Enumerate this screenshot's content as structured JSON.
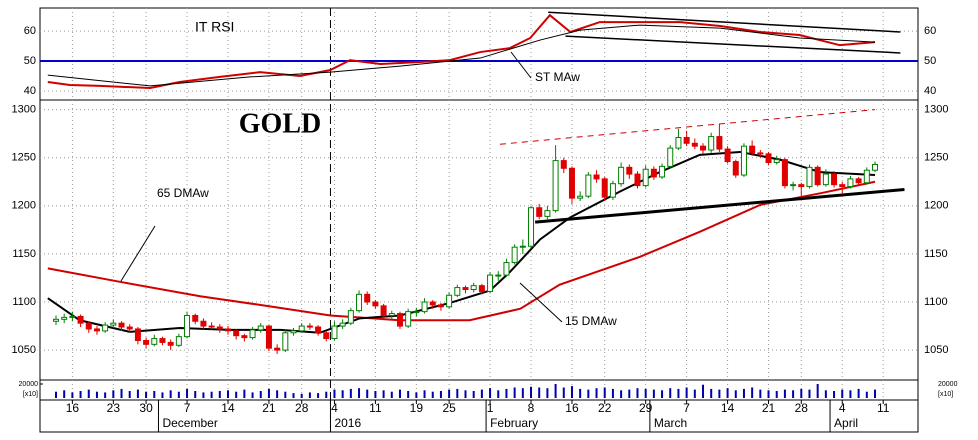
{
  "chart_data": {
    "type": "candlestick",
    "title": "GOLD",
    "categories": [
      null,
      null,
      "16",
      null,
      null,
      null,
      null,
      "23",
      null,
      null,
      null,
      "30",
      null,
      null,
      null,
      null,
      "7",
      null,
      null,
      null,
      null,
      "14",
      null,
      null,
      null,
      null,
      "21",
      null,
      null,
      null,
      "28",
      null,
      null,
      null,
      "4",
      null,
      null,
      null,
      null,
      "11",
      null,
      null,
      null,
      null,
      "19",
      null,
      null,
      null,
      "25",
      null,
      null,
      null,
      null,
      "1",
      null,
      null,
      null,
      null,
      "8",
      null,
      null,
      null,
      null,
      "16",
      null,
      null,
      null,
      "22",
      null,
      null,
      null,
      null,
      "29",
      null,
      null,
      null,
      null,
      "7",
      null,
      null,
      null,
      null,
      "14",
      null,
      null,
      null,
      null,
      "21",
      null,
      null,
      null,
      "28",
      null,
      null,
      null,
      null,
      "4",
      null,
      null,
      null,
      null,
      "11"
    ],
    "months": [
      {
        "label": "December",
        "start": 13
      },
      {
        "label": "2016",
        "start": 34,
        "dashed": true
      },
      {
        "label": "February",
        "start": 53
      },
      {
        "label": "March",
        "start": 73
      },
      {
        "label": "April",
        "start": 95
      }
    ],
    "ohlc": [
      [
        1080,
        1086,
        1076,
        1082
      ],
      [
        1082,
        1088,
        1078,
        1084
      ],
      [
        1084,
        1090,
        1080,
        1085
      ],
      [
        1085,
        1087,
        1074,
        1078
      ],
      [
        1078,
        1080,
        1068,
        1072
      ],
      [
        1072,
        1075,
        1066,
        1070
      ],
      [
        1070,
        1079,
        1068,
        1076
      ],
      [
        1076,
        1082,
        1073,
        1078
      ],
      [
        1078,
        1080,
        1070,
        1074
      ],
      [
        1074,
        1077,
        1068,
        1072
      ],
      [
        1072,
        1074,
        1056,
        1060
      ],
      [
        1060,
        1063,
        1052,
        1056
      ],
      [
        1056,
        1066,
        1054,
        1062
      ],
      [
        1062,
        1064,
        1055,
        1058
      ],
      [
        1058,
        1061,
        1050,
        1055
      ],
      [
        1055,
        1067,
        1053,
        1064
      ],
      [
        1064,
        1090,
        1062,
        1086
      ],
      [
        1086,
        1088,
        1077,
        1080
      ],
      [
        1080,
        1083,
        1072,
        1075
      ],
      [
        1075,
        1079,
        1071,
        1074
      ],
      [
        1074,
        1077,
        1068,
        1072
      ],
      [
        1072,
        1075,
        1066,
        1070
      ],
      [
        1070,
        1072,
        1061,
        1065
      ],
      [
        1065,
        1067,
        1059,
        1063
      ],
      [
        1063,
        1074,
        1061,
        1071
      ],
      [
        1071,
        1078,
        1068,
        1075
      ],
      [
        1075,
        1076,
        1049,
        1052
      ],
      [
        1052,
        1056,
        1046,
        1050
      ],
      [
        1050,
        1071,
        1048,
        1068
      ],
      [
        1068,
        1073,
        1065,
        1070
      ],
      [
        1070,
        1078,
        1068,
        1075
      ],
      [
        1075,
        1078,
        1071,
        1074
      ],
      [
        1074,
        1076,
        1065,
        1068
      ],
      [
        1068,
        1070,
        1059,
        1062
      ],
      [
        1062,
        1080,
        1060,
        1075
      ],
      [
        1075,
        1082,
        1072,
        1078
      ],
      [
        1078,
        1094,
        1076,
        1091
      ],
      [
        1091,
        1112,
        1089,
        1108
      ],
      [
        1108,
        1111,
        1097,
        1100
      ],
      [
        1100,
        1102,
        1093,
        1096
      ],
      [
        1096,
        1098,
        1083,
        1086
      ],
      [
        1086,
        1091,
        1082,
        1088
      ],
      [
        1088,
        1090,
        1072,
        1075
      ],
      [
        1075,
        1093,
        1073,
        1090
      ],
      [
        1090,
        1094,
        1085,
        1090
      ],
      [
        1090,
        1104,
        1088,
        1100
      ],
      [
        1100,
        1102,
        1093,
        1097
      ],
      [
        1097,
        1099,
        1091,
        1095
      ],
      [
        1095,
        1110,
        1093,
        1107
      ],
      [
        1107,
        1118,
        1105,
        1115
      ],
      [
        1115,
        1117,
        1109,
        1113
      ],
      [
        1113,
        1120,
        1110,
        1117
      ],
      [
        1117,
        1119,
        1108,
        1111
      ],
      [
        1111,
        1131,
        1109,
        1128
      ],
      [
        1128,
        1132,
        1122,
        1128
      ],
      [
        1128,
        1145,
        1126,
        1141
      ],
      [
        1141,
        1160,
        1139,
        1157
      ],
      [
        1157,
        1165,
        1150,
        1158
      ],
      [
        1158,
        1200,
        1156,
        1198
      ],
      [
        1198,
        1202,
        1186,
        1189
      ],
      [
        1189,
        1200,
        1185,
        1195
      ],
      [
        1195,
        1263,
        1193,
        1247
      ],
      [
        1247,
        1250,
        1234,
        1239
      ],
      [
        1239,
        1241,
        1202,
        1208
      ],
      [
        1208,
        1215,
        1205,
        1210
      ],
      [
        1210,
        1235,
        1208,
        1232
      ],
      [
        1232,
        1237,
        1224,
        1228
      ],
      [
        1228,
        1230,
        1205,
        1209
      ],
      [
        1209,
        1226,
        1206,
        1223
      ],
      [
        1223,
        1245,
        1220,
        1240
      ],
      [
        1240,
        1243,
        1228,
        1233
      ],
      [
        1233,
        1236,
        1218,
        1221
      ],
      [
        1221,
        1242,
        1219,
        1238
      ],
      [
        1238,
        1241,
        1227,
        1230
      ],
      [
        1230,
        1244,
        1228,
        1241
      ],
      [
        1241,
        1263,
        1239,
        1260
      ],
      [
        1260,
        1280,
        1258,
        1271
      ],
      [
        1271,
        1278,
        1262,
        1265
      ],
      [
        1265,
        1270,
        1259,
        1262
      ],
      [
        1262,
        1265,
        1254,
        1258
      ],
      [
        1258,
        1276,
        1255,
        1272
      ],
      [
        1272,
        1285,
        1256,
        1259
      ],
      [
        1259,
        1262,
        1244,
        1246
      ],
      [
        1246,
        1248,
        1229,
        1232
      ],
      [
        1232,
        1265,
        1230,
        1262
      ],
      [
        1262,
        1268,
        1252,
        1255
      ],
      [
        1255,
        1258,
        1250,
        1254
      ],
      [
        1254,
        1256,
        1242,
        1245
      ],
      [
        1245,
        1252,
        1243,
        1248
      ],
      [
        1248,
        1250,
        1218,
        1221
      ],
      [
        1221,
        1225,
        1216,
        1222
      ],
      [
        1222,
        1224,
        1210,
        1220
      ],
      [
        1220,
        1243,
        1218,
        1240
      ],
      [
        1240,
        1242,
        1220,
        1222
      ],
      [
        1222,
        1238,
        1220,
        1233
      ],
      [
        1233,
        1236,
        1219,
        1222
      ],
      [
        1222,
        1225,
        1212,
        1220
      ],
      [
        1220,
        1231,
        1218,
        1228
      ],
      [
        1228,
        1230,
        1221,
        1224
      ],
      [
        1224,
        1240,
        1222,
        1237
      ],
      [
        1237,
        1246,
        1235,
        1243
      ],
      null
    ],
    "up_color": "#008000",
    "down_color": "#e00000",
    "ylim": [
      1021,
      1310
    ],
    "yticks": [
      1050,
      1100,
      1150,
      1200,
      1250,
      1300
    ],
    "grid": true,
    "lines": [
      {
        "name": "65 DMAw",
        "color": "#d00000",
        "x": [
          -1,
          7.8,
          17.6,
          24.9,
          33.5,
          42,
          50.5,
          56.7,
          61.5,
          71.3,
          78.6,
          86,
          93.3,
          100
        ],
        "values": [
          1135,
          1121,
          1106,
          1097,
          1086,
          1081,
          1081,
          1093,
          1118,
          1147,
          1173,
          1201,
          1213,
          1225
        ]
      },
      {
        "name": "15 DMAw",
        "color": "#000000",
        "x": [
          -1,
          2.9,
          9,
          15.1,
          21.2,
          27.4,
          32.2,
          37.1,
          42,
          48.1,
          53,
          55.4,
          59.1,
          62.8,
          68.9,
          73.7,
          78.6,
          83.5,
          88.4,
          93.3,
          100
        ],
        "values": [
          1104,
          1081,
          1069,
          1073,
          1071,
          1071,
          1068,
          1083,
          1086,
          1099,
          1112,
          1131,
          1165,
          1188,
          1215,
          1235,
          1253,
          1256,
          1248,
          1235,
          1232
        ]
      }
    ],
    "trendlines": [
      {
        "color": "#000000",
        "dashed": false,
        "x": [
          58.5,
          103.6
        ],
        "values": [
          1183,
          1217
        ]
      },
      {
        "color": "#d00000",
        "dashed": true,
        "x": [
          54.2,
          100
        ],
        "values": [
          1264,
          1300
        ]
      }
    ],
    "volume": {
      "color": "#0000aa",
      "ylim": [
        0,
        20000
      ],
      "yticks": [
        20000
      ],
      "unit_label": "[x10]",
      "values": [
        9000,
        11000,
        8000,
        10000,
        12000,
        9000,
        8000,
        11000,
        13000,
        10000,
        12000,
        9000,
        10000,
        8000,
        11000,
        9000,
        13000,
        10000,
        8000,
        9000,
        10000,
        11000,
        9000,
        12000,
        8000,
        10000,
        13000,
        11000,
        9000,
        7000,
        6000,
        8000,
        7000,
        9000,
        12000,
        11000,
        13000,
        14000,
        12000,
        10000,
        11000,
        9000,
        12000,
        10000,
        8000,
        11000,
        9000,
        10000,
        12000,
        13000,
        11000,
        10000,
        12000,
        14000,
        11000,
        13000,
        15000,
        14000,
        16000,
        15000,
        14000,
        20000,
        15000,
        17000,
        13000,
        12000,
        14000,
        15000,
        13000,
        11000,
        12000,
        14000,
        13000,
        12000,
        11000,
        14000,
        13000,
        15000,
        12000,
        19000,
        13000,
        12000,
        14000,
        11000,
        13000,
        15000,
        12000,
        11000,
        10000,
        12000,
        11000,
        13000,
        12000,
        20000,
        11000,
        10000,
        12000,
        11000,
        13000,
        9000,
        12000,
        null
      ]
    },
    "rsi": {
      "title": "IT RSI",
      "ylim": [
        37,
        67.7
      ],
      "yticks": [
        40,
        50,
        60
      ],
      "reference": 50,
      "reference_color": "#0000cc",
      "series": [
        {
          "color": "#d00000",
          "x": [
            -1,
            1.7,
            5.4,
            11.5,
            15.1,
            20,
            24.9,
            29.8,
            33.5,
            35.9,
            39.6,
            44.4,
            48.1,
            51.8,
            55.4,
            57.9,
            60.3,
            62.8,
            66.4,
            71.3,
            76.2,
            81.1,
            86,
            90.8,
            95.7,
            100
          ],
          "values": [
            43,
            42,
            41.7,
            41,
            43,
            44.7,
            46.3,
            45,
            47,
            50.3,
            49,
            49.7,
            50.3,
            53,
            54.3,
            57.7,
            65.3,
            59.7,
            63,
            63,
            63,
            61.7,
            59.7,
            58.7,
            55.3,
            56.3
          ]
        },
        {
          "name": "ST MAw",
          "color": "#000000",
          "x": [
            -1,
            11.5,
            23.7,
            33.5,
            42,
            51.8,
            59.1,
            64,
            71.3,
            81.1,
            90.8,
            100
          ],
          "values": [
            45.3,
            41.7,
            44.7,
            46.3,
            48.3,
            51,
            57,
            60.3,
            62,
            61,
            57.7,
            56.3
          ]
        }
      ],
      "trendlines": [
        {
          "color": "#000000",
          "x": [
            60.1,
            103.1
          ],
          "values": [
            66.3,
            59.7
          ]
        },
        {
          "color": "#000000",
          "x": [
            62.2,
            103.1
          ],
          "values": [
            58.3,
            52.7
          ]
        }
      ]
    }
  }
}
